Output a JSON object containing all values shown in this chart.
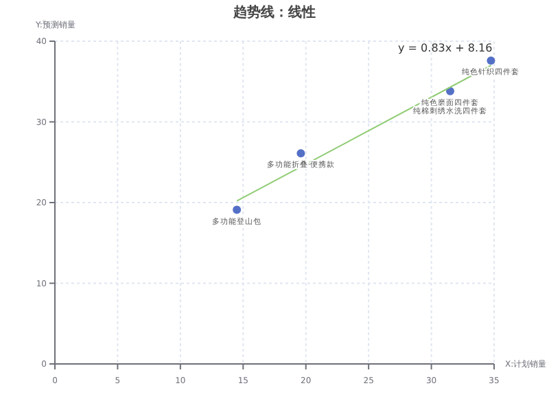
{
  "chart_data": {
    "type": "scatter",
    "title": "趋势线：线性",
    "xlabel": "X:计划销量",
    "ylabel": "Y:预测销量",
    "xlim": [
      0,
      35
    ],
    "xticks": [
      0,
      5,
      10,
      15,
      20,
      25,
      30,
      35
    ],
    "ylim": [
      0,
      40
    ],
    "yticks": [
      0,
      10,
      20,
      30,
      40
    ],
    "grid": true,
    "series": [
      {
        "marker": "circle",
        "color": "#5470c6",
        "x": [
          14.5,
          19.6,
          31.5,
          34.75
        ],
        "values": [
          19.1,
          26.1,
          33.8,
          37.6
        ]
      },
      {
        "type": "line",
        "color": "#91cc75",
        "x": [
          14.5,
          34.75
        ],
        "values": [
          20.2,
          37.0
        ]
      }
    ],
    "annotations": [
      {
        "text": "多功能登山包",
        "x": 14.5,
        "y": 19.1
      },
      {
        "text": "多功能折叠·便携款",
        "x": 19.6,
        "y": 26.1
      },
      {
        "text": "纯色磨面四件套",
        "x": 31.5,
        "y": 33.8
      },
      {
        "text": "纯棉刺绣水洗四件套",
        "x": 31.5,
        "y": 33.8
      },
      {
        "text": "纯色针织四件套",
        "x": 34.75,
        "y": 37.6
      },
      {
        "text": "y = 0.83x + 8.16",
        "x": 34.75,
        "y": 37.0
      }
    ]
  }
}
